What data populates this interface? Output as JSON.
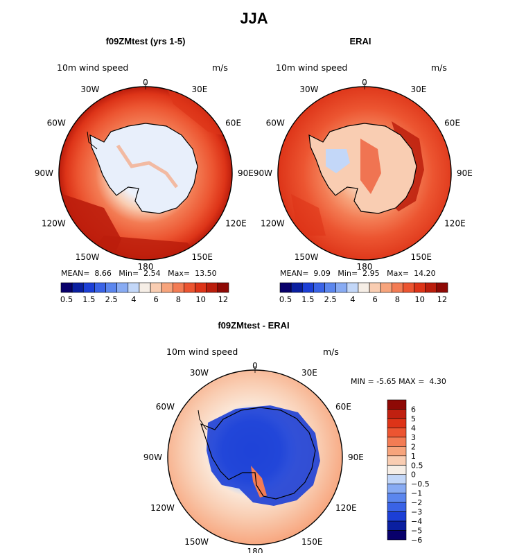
{
  "title": "JJA",
  "panels": [
    {
      "title": "f09ZMtest (yrs 1-5)",
      "variable": "10m wind speed",
      "units": "m/s",
      "stats": {
        "mean_label": "MEAN=",
        "mean": "8.66",
        "min_label": "Min=",
        "min": "2.54",
        "max_label": "Max=",
        "max": "13.50"
      }
    },
    {
      "title": "ERAI",
      "variable": "10m wind speed",
      "units": "m/s",
      "stats": {
        "mean_label": "MEAN=",
        "mean": "9.09",
        "min_label": "Min=",
        "min": "2.95",
        "max_label": "Max=",
        "max": "14.20"
      }
    },
    {
      "title": "f09ZMtest - ERAI",
      "variable": "10m wind speed",
      "units": "m/s",
      "stats": {
        "min_label": "MIN =",
        "min": "-5.65",
        "max_label": "MAX =",
        "max": "4.30"
      }
    }
  ],
  "lon_labels": [
    "0",
    "30E",
    "60E",
    "90E",
    "120E",
    "150E",
    "180",
    "150W",
    "120W",
    "90W",
    "60W",
    "30W"
  ],
  "wind_colorbar": {
    "colors": [
      "#08006b",
      "#0a1fa0",
      "#1c3fd6",
      "#3a63e6",
      "#5b86ee",
      "#88abf3",
      "#c3d7f8",
      "#f6eee6",
      "#f9cdb2",
      "#f7a47c",
      "#f37c54",
      "#ec5531",
      "#dd3418",
      "#bb1d0c",
      "#8e0905"
    ],
    "labels": [
      "0.5",
      "1.5",
      "2.5",
      "4",
      "6",
      "8",
      "10",
      "12"
    ]
  },
  "diff_colorbar": {
    "colors": [
      "#8e0905",
      "#c02010",
      "#dd3418",
      "#ec5531",
      "#f37c54",
      "#f7a47c",
      "#f9cdb2",
      "#f6eee6",
      "#c3d7f8",
      "#88abf3",
      "#5b86ee",
      "#3a63e6",
      "#1c3fd6",
      "#0a1fa0",
      "#08006b"
    ],
    "labels": [
      "6",
      "5",
      "4",
      "3",
      "2",
      "1",
      "0.5",
      "0",
      "−0.5",
      "−1",
      "−2",
      "−3",
      "−4",
      "−5",
      "−6"
    ]
  }
}
